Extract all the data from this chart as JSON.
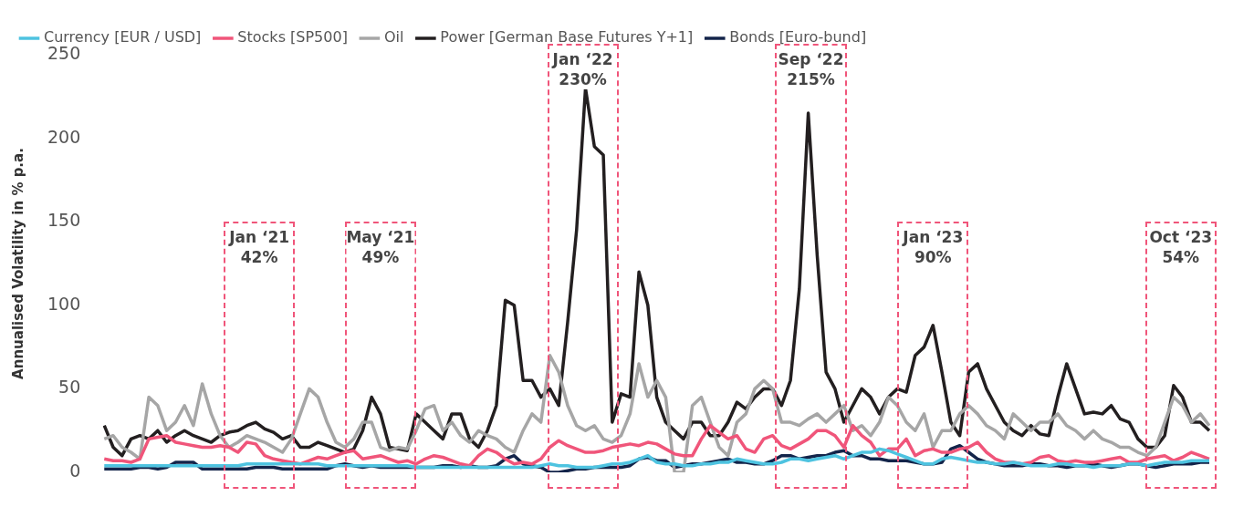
{
  "chart_data": {
    "type": "line",
    "ylabel": "Annualised Volatility in % p.a.",
    "categories": [
      null,
      null,
      null,
      null,
      null,
      null,
      null,
      null,
      null,
      null,
      null,
      null,
      null,
      null,
      null,
      null,
      null,
      null,
      null,
      null,
      null,
      null,
      null,
      null,
      null,
      null,
      null,
      null,
      null,
      null,
      null,
      null,
      null,
      null,
      null,
      null,
      null,
      null,
      null,
      null,
      null,
      null,
      null,
      null,
      null,
      null,
      null,
      null,
      null,
      null,
      null,
      null,
      null,
      null,
      null,
      null,
      null,
      null,
      null,
      null,
      null,
      null,
      null,
      null,
      null,
      null,
      null,
      null,
      null,
      null,
      null,
      null,
      null,
      null,
      null,
      null,
      null,
      null,
      null,
      null,
      null,
      null,
      null,
      null,
      null,
      null,
      null,
      null,
      null,
      null,
      null,
      null,
      null,
      null,
      null,
      null,
      null,
      null,
      null,
      null,
      null,
      null,
      null,
      null,
      null,
      null,
      null,
      null,
      null,
      null,
      null,
      null,
      null,
      null,
      null,
      null,
      null,
      null,
      null,
      null,
      null,
      null,
      null,
      null,
      null
    ],
    "series": [
      {
        "name": "Currency [EUR / USD]",
        "color": "#4ec3e0",
        "values": [
          4,
          4,
          4,
          4,
          4,
          4,
          4,
          4,
          4,
          4,
          4,
          4,
          4,
          4,
          4,
          4,
          5,
          5,
          5,
          5,
          5,
          5,
          5,
          5,
          5,
          4,
          4,
          4,
          4,
          4,
          4,
          4,
          4,
          4,
          4,
          3,
          3,
          3,
          3,
          3,
          3,
          3,
          3,
          3,
          3,
          3,
          3,
          3,
          3,
          4,
          5,
          4,
          4,
          3,
          3,
          3,
          4,
          5,
          5,
          6,
          8,
          10,
          6,
          5,
          5,
          4,
          4,
          5,
          5,
          6,
          6,
          8,
          7,
          6,
          5,
          5,
          6,
          8,
          8,
          7,
          8,
          9,
          10,
          8,
          10,
          12,
          12,
          14,
          13,
          11,
          9,
          7,
          5,
          5,
          8,
          9,
          8,
          7,
          6,
          6,
          5,
          5,
          6,
          5,
          4,
          4,
          4,
          5,
          5,
          4,
          4,
          3,
          4,
          4,
          4,
          5,
          5,
          4,
          5,
          6,
          6,
          6,
          7,
          7,
          7
        ]
      },
      {
        "name": "Stocks [SP500]",
        "color": "#f0557a",
        "values": [
          8,
          7,
          7,
          6,
          8,
          20,
          21,
          22,
          18,
          17,
          16,
          15,
          15,
          16,
          15,
          12,
          18,
          17,
          10,
          8,
          7,
          6,
          5,
          7,
          9,
          8,
          10,
          12,
          13,
          8,
          9,
          10,
          8,
          6,
          7,
          5,
          8,
          10,
          9,
          7,
          5,
          4,
          10,
          14,
          12,
          8,
          5,
          6,
          5,
          8,
          15,
          19,
          16,
          14,
          12,
          12,
          13,
          15,
          16,
          17,
          16,
          18,
          17,
          14,
          11,
          10,
          10,
          20,
          28,
          24,
          20,
          22,
          14,
          12,
          20,
          22,
          16,
          14,
          17,
          20,
          25,
          25,
          22,
          15,
          28,
          22,
          18,
          10,
          14,
          14,
          20,
          10,
          13,
          14,
          12,
          12,
          14,
          15,
          18,
          12,
          8,
          6,
          6,
          5,
          6,
          9,
          10,
          7,
          6,
          7,
          6,
          6,
          7,
          8,
          9,
          6,
          6,
          8,
          9,
          10,
          7,
          9,
          12,
          10,
          8
        ]
      },
      {
        "name": "Oil",
        "color": "#a6a6a6",
        "values": [
          20,
          22,
          15,
          12,
          8,
          45,
          40,
          25,
          30,
          40,
          28,
          53,
          35,
          22,
          15,
          18,
          22,
          20,
          18,
          15,
          12,
          20,
          35,
          50,
          45,
          30,
          18,
          15,
          20,
          30,
          30,
          15,
          13,
          15,
          14,
          25,
          38,
          40,
          25,
          30,
          22,
          18,
          25,
          22,
          20,
          15,
          12,
          25,
          35,
          30,
          70,
          60,
          40,
          28,
          25,
          28,
          20,
          18,
          22,
          35,
          65,
          45,
          55,
          45,
          0,
          0,
          40,
          45,
          30,
          15,
          10,
          30,
          35,
          50,
          55,
          50,
          30,
          30,
          28,
          32,
          35,
          30,
          35,
          40,
          25,
          28,
          22,
          30,
          45,
          40,
          30,
          25,
          35,
          15,
          25,
          25,
          35,
          40,
          35,
          28,
          25,
          20,
          35,
          30,
          25,
          30,
          30,
          35,
          28,
          25,
          20,
          25,
          20,
          18,
          15,
          15,
          12,
          10,
          15,
          30,
          45,
          40,
          30,
          35,
          28
        ]
      },
      {
        "name": "Power [German Base Futures Y+1]",
        "color": "#231f20",
        "values": [
          28,
          15,
          10,
          20,
          22,
          20,
          25,
          18,
          22,
          25,
          22,
          20,
          18,
          22,
          24,
          25,
          28,
          30,
          26,
          24,
          20,
          22,
          15,
          15,
          18,
          16,
          14,
          12,
          14,
          25,
          45,
          35,
          15,
          14,
          13,
          35,
          30,
          25,
          20,
          35,
          35,
          20,
          15,
          25,
          40,
          103,
          100,
          55,
          55,
          45,
          50,
          40,
          90,
          145,
          230,
          195,
          190,
          30,
          47,
          45,
          120,
          100,
          45,
          30,
          25,
          20,
          30,
          30,
          22,
          22,
          30,
          42,
          38,
          45,
          50,
          50,
          40,
          55,
          110,
          215,
          130,
          60,
          50,
          30,
          40,
          50,
          45,
          35,
          45,
          50,
          48,
          70,
          75,
          88,
          60,
          30,
          22,
          60,
          65,
          50,
          40,
          30,
          25,
          22,
          28,
          23,
          22,
          45,
          65,
          50,
          35,
          36,
          35,
          40,
          32,
          30,
          20,
          15,
          15,
          22,
          52,
          45,
          30,
          30,
          25
        ]
      },
      {
        "name": "Bonds [Euro-bund]",
        "color": "#13244a",
        "values": [
          2,
          2,
          2,
          2,
          3,
          3,
          2,
          3,
          6,
          6,
          6,
          2,
          2,
          2,
          2,
          2,
          2,
          3,
          3,
          3,
          2,
          2,
          2,
          2,
          2,
          2,
          4,
          5,
          4,
          3,
          4,
          3,
          3,
          3,
          3,
          3,
          3,
          3,
          4,
          4,
          3,
          4,
          3,
          3,
          4,
          8,
          10,
          5,
          4,
          3,
          0,
          0,
          1,
          2,
          2,
          3,
          3,
          3,
          3,
          4,
          8,
          9,
          7,
          7,
          3,
          4,
          5,
          5,
          6,
          7,
          8,
          6,
          6,
          5,
          5,
          7,
          10,
          10,
          8,
          9,
          10,
          10,
          12,
          13,
          10,
          10,
          8,
          8,
          7,
          7,
          7,
          6,
          5,
          5,
          6,
          14,
          16,
          12,
          8,
          6,
          5,
          4,
          4,
          4,
          5,
          5,
          4,
          4,
          3,
          4,
          4,
          5,
          4,
          3,
          4,
          5,
          5,
          4,
          3,
          4,
          5,
          5,
          5,
          6,
          6
        ]
      }
    ],
    "ylim": [
      0,
      250
    ],
    "yticks": [
      0,
      50,
      100,
      150,
      200,
      250
    ],
    "grid": false,
    "legend": "top",
    "marker": "none",
    "line_style": "solid",
    "tick_labels": "y",
    "annotations": [
      "Jan ‘21 42%",
      "May ‘21 49%",
      "Jan ‘22 230%",
      "Sep ‘22 215%",
      "Jan ‘23 90%",
      "Oct ‘23 54%"
    ]
  }
}
